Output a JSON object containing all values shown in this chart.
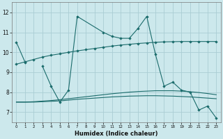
{
  "xlabel": "Humidex (Indice chaleur)",
  "xlim": [
    -0.5,
    23.5
  ],
  "ylim": [
    6.5,
    12.5
  ],
  "yticks": [
    7,
    8,
    9,
    10,
    11,
    12
  ],
  "xticks": [
    0,
    1,
    2,
    3,
    4,
    5,
    6,
    7,
    8,
    9,
    10,
    11,
    12,
    13,
    14,
    15,
    16,
    17,
    18,
    19,
    20,
    21,
    22,
    23
  ],
  "background_color": "#cce8ec",
  "grid_color": "#aacdd4",
  "line_color": "#1a6b6b",
  "series": [
    {
      "label": "line1_short",
      "x": [
        0,
        1
      ],
      "y": [
        10.5,
        9.5
      ],
      "markers": true
    },
    {
      "label": "line2_peaked",
      "x": [
        3,
        4,
        5,
        6,
        7,
        10,
        11,
        12,
        13,
        14,
        15,
        16,
        17,
        18,
        19,
        20,
        21,
        22,
        23
      ],
      "y": [
        9.3,
        8.3,
        7.5,
        8.1,
        11.8,
        11.0,
        10.8,
        10.7,
        10.7,
        11.2,
        11.8,
        9.9,
        8.3,
        8.5,
        8.1,
        8.0,
        7.1,
        7.3,
        6.7
      ],
      "markers": true
    },
    {
      "label": "line3_rising_smooth",
      "x": [
        0,
        1,
        2,
        3,
        4,
        5,
        6,
        7,
        8,
        9,
        10,
        11,
        12,
        13,
        14,
        15,
        16,
        17,
        18,
        19,
        20,
        21,
        22,
        23
      ],
      "y": [
        9.4,
        9.52,
        9.64,
        9.76,
        9.85,
        9.92,
        10.0,
        10.07,
        10.13,
        10.19,
        10.25,
        10.31,
        10.36,
        10.4,
        10.44,
        10.47,
        10.5,
        10.52,
        10.53,
        10.54,
        10.54,
        10.54,
        10.54,
        10.54
      ],
      "markers": true
    },
    {
      "label": "line4_lower_smooth",
      "x": [
        0,
        1,
        2,
        3,
        4,
        5,
        6,
        7,
        8,
        9,
        10,
        11,
        12,
        13,
        14,
        15,
        16,
        17,
        18,
        19,
        20,
        21,
        22,
        23
      ],
      "y": [
        7.5,
        7.5,
        7.52,
        7.55,
        7.58,
        7.62,
        7.67,
        7.72,
        7.77,
        7.82,
        7.87,
        7.92,
        7.96,
        8.0,
        8.03,
        8.05,
        8.07,
        8.07,
        8.07,
        8.05,
        8.02,
        7.98,
        7.93,
        7.87
      ],
      "markers": false
    },
    {
      "label": "line5_flat_smooth",
      "x": [
        0,
        1,
        2,
        3,
        4,
        5,
        6,
        7,
        8,
        9,
        10,
        11,
        12,
        13,
        14,
        15,
        16,
        17,
        18,
        19,
        20,
        21,
        22,
        23
      ],
      "y": [
        7.5,
        7.5,
        7.5,
        7.52,
        7.54,
        7.56,
        7.6,
        7.64,
        7.67,
        7.7,
        7.73,
        7.76,
        7.78,
        7.8,
        7.81,
        7.82,
        7.82,
        7.81,
        7.8,
        7.78,
        7.76,
        7.73,
        7.7,
        7.67
      ],
      "markers": false
    }
  ]
}
